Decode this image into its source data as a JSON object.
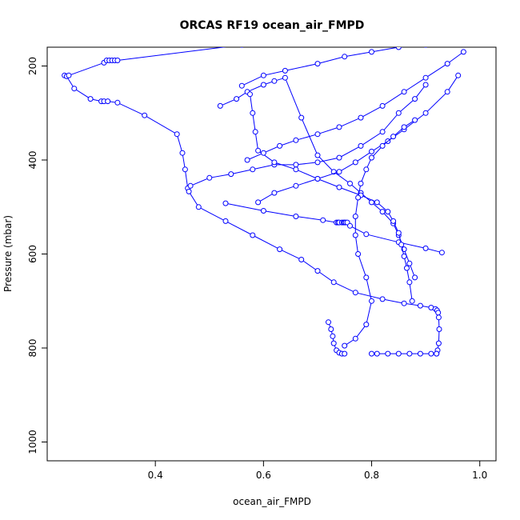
{
  "chart_data": {
    "type": "line",
    "title": "ORCAS RF19 ocean_air_FMPD",
    "xlabel": "ocean_air_FMPD",
    "ylabel": "Pressure (mbar)",
    "xlim": [
      0.2,
      1.03
    ],
    "ylim": [
      1040,
      160
    ],
    "y_reversed": true,
    "x_ticks": [
      "0.4",
      "0.6",
      "0.8",
      "1.0"
    ],
    "y_ticks": [
      "200",
      "400",
      "600",
      "800",
      "1000"
    ],
    "marker": "open-circle",
    "series_color": "#0000FF",
    "grid": false,
    "legend": "none",
    "series": [
      {
        "x": [
          0.232,
          0.236,
          0.25,
          0.28,
          0.3,
          0.305,
          0.312,
          0.33,
          0.38,
          0.44,
          0.45,
          0.455,
          0.46,
          0.462,
          0.48,
          0.53,
          0.58,
          0.63,
          0.67,
          0.7,
          0.73,
          0.77,
          0.82,
          0.86,
          0.89,
          0.91,
          0.918,
          0.921,
          0.923,
          0.924,
          0.925,
          0.924,
          0.922,
          0.92
        ],
        "y": [
          220,
          222,
          248,
          270,
          275,
          275,
          275,
          278,
          305,
          345,
          385,
          420,
          460,
          467,
          500,
          530,
          560,
          590,
          612,
          636,
          660,
          682,
          696,
          705,
          710,
          714,
          717,
          720,
          725,
          735,
          760,
          790,
          805,
          812
        ]
      },
      {
        "x": [
          0.24,
          0.305,
          0.31,
          0.315,
          0.32,
          0.325,
          0.33,
          0.56
        ],
        "y": [
          220,
          193,
          188,
          188,
          188,
          188,
          188,
          155
        ]
      },
      {
        "x": [
          0.465,
          0.5,
          0.54,
          0.58,
          0.62,
          0.66,
          0.7,
          0.74,
          0.78,
          0.82,
          0.85,
          0.88,
          0.9
        ],
        "y": [
          455,
          438,
          430,
          420,
          410,
          410,
          405,
          395,
          370,
          340,
          300,
          270,
          240
        ]
      },
      {
        "x": [
          0.53,
          0.6,
          0.66,
          0.71,
          0.735,
          0.738,
          0.74,
          0.745,
          0.748,
          0.75,
          0.752,
          0.755,
          0.76,
          0.79,
          0.85,
          0.9,
          0.93
        ],
        "y": [
          492,
          508,
          520,
          528,
          533,
          533,
          533,
          533,
          533,
          533,
          533,
          533,
          540,
          558,
          575,
          588,
          597
        ]
      },
      {
        "x": [
          0.52,
          0.55,
          0.57,
          0.6,
          0.62,
          0.64,
          0.67,
          0.7,
          0.73,
          0.76,
          0.78,
          0.8,
          0.82,
          0.84,
          0.85,
          0.86,
          0.87,
          0.88
        ],
        "y": [
          285,
          270,
          255,
          240,
          232,
          225,
          310,
          390,
          425,
          450,
          470,
          490,
          510,
          535,
          560,
          590,
          620,
          650
        ]
      },
      {
        "x": [
          0.56,
          0.6,
          0.64,
          0.7,
          0.75,
          0.8,
          0.85,
          0.9,
          0.95,
          0.97
        ],
        "y": [
          242,
          220,
          210,
          195,
          180,
          170,
          160,
          155,
          150,
          148
        ]
      },
      {
        "x": [
          0.575,
          0.58,
          0.585,
          0.59,
          0.62,
          0.66,
          0.7,
          0.74,
          0.78,
          0.81,
          0.83,
          0.84,
          0.85,
          0.855,
          0.86,
          0.865,
          0.87,
          0.875
        ],
        "y": [
          260,
          300,
          340,
          380,
          405,
          420,
          440,
          458,
          475,
          490,
          510,
          530,
          555,
          580,
          605,
          630,
          660,
          700
        ]
      },
      {
        "x": [
          0.57,
          0.6,
          0.63,
          0.66,
          0.7,
          0.74,
          0.78,
          0.82,
          0.86,
          0.9,
          0.94,
          0.97
        ],
        "y": [
          400,
          385,
          370,
          358,
          345,
          330,
          310,
          285,
          255,
          225,
          195,
          170
        ]
      },
      {
        "x": [
          0.59,
          0.62,
          0.66,
          0.7,
          0.74,
          0.77,
          0.8,
          0.83,
          0.86,
          0.9,
          0.94,
          0.96
        ],
        "y": [
          490,
          470,
          455,
          440,
          425,
          405,
          382,
          360,
          335,
          300,
          255,
          220
        ]
      },
      {
        "x": [
          0.72,
          0.725,
          0.728,
          0.73,
          0.735,
          0.74,
          0.745,
          0.75
        ],
        "y": [
          745,
          760,
          775,
          790,
          805,
          810,
          812,
          812
        ]
      },
      {
        "x": [
          0.8,
          0.81,
          0.83,
          0.85,
          0.87,
          0.89,
          0.91,
          0.92
        ],
        "y": [
          812,
          812,
          812,
          812,
          812,
          812,
          812,
          812
        ]
      },
      {
        "x": [
          0.88,
          0.86,
          0.84,
          0.82,
          0.8,
          0.79,
          0.78,
          0.775,
          0.77,
          0.77,
          0.775,
          0.79,
          0.8,
          0.79,
          0.77,
          0.75
        ],
        "y": [
          315,
          330,
          350,
          370,
          395,
          420,
          450,
          480,
          520,
          560,
          600,
          650,
          700,
          750,
          780,
          795
        ]
      }
    ]
  }
}
